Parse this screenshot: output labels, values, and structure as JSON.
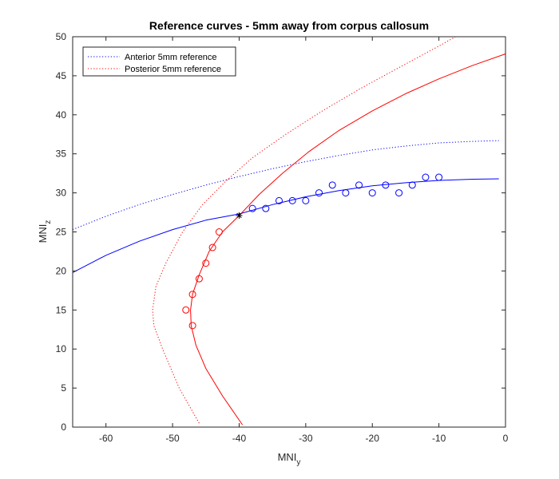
{
  "chart_data": {
    "type": "line",
    "title": "Reference curves - 5mm away from corpus callosum",
    "xlabel": "MNI",
    "xlabel_sub": "y",
    "ylabel": "MNI",
    "ylabel_sub": "z",
    "xlim": [
      -65,
      0
    ],
    "ylim": [
      0,
      50
    ],
    "xticks": [
      -60,
      -50,
      -40,
      -30,
      -20,
      -10,
      0
    ],
    "yticks": [
      0,
      5,
      10,
      15,
      20,
      25,
      30,
      35,
      40,
      45,
      50
    ],
    "grid": false,
    "legend_position": "top-left",
    "legend": [
      {
        "label": "Anterior 5mm reference",
        "color": "#0000ff",
        "style": "dotted"
      },
      {
        "label": "Posterior 5mm reference",
        "color": "#ff0000",
        "style": "dotted"
      }
    ],
    "series": [
      {
        "style": "dotted",
        "color": "#0000ff",
        "x": [
          -65,
          -60,
          -55,
          -50,
          -45,
          -40,
          -35,
          -30,
          -25,
          -20,
          -15,
          -10,
          -5,
          -1
        ],
        "y": [
          25.3,
          27.0,
          28.5,
          29.8,
          31.0,
          32.1,
          33.1,
          34.0,
          34.8,
          35.5,
          36.0,
          36.4,
          36.6,
          36.7
        ]
      },
      {
        "style": "dotted",
        "color": "#ff0000",
        "x": [
          -46.0,
          -49.0,
          -51.5,
          -52.8,
          -53.0,
          -52.5,
          -51.0,
          -48.5,
          -45.5,
          -42.0,
          -38.0,
          -33.0,
          -27.5,
          -21.5,
          -15.0,
          -10.0,
          -7.5
        ],
        "y": [
          0.5,
          5.0,
          10.0,
          13.0,
          15.0,
          18.0,
          21.0,
          25.0,
          28.5,
          31.5,
          34.5,
          37.5,
          40.5,
          43.5,
          46.5,
          48.8,
          50.0
        ]
      },
      {
        "style": "solid",
        "color": "#0000ff",
        "x": [
          -65,
          -60,
          -55,
          -50,
          -45,
          -40,
          -35,
          -30,
          -25,
          -20,
          -15,
          -10,
          -5,
          -1
        ],
        "y": [
          19.8,
          22.0,
          23.8,
          25.3,
          26.5,
          27.3,
          28.5,
          29.5,
          30.3,
          30.9,
          31.3,
          31.6,
          31.75,
          31.8
        ]
      },
      {
        "style": "solid",
        "color": "#ff0000",
        "x": [
          -39.5,
          -42.5,
          -45.0,
          -46.5,
          -47.2,
          -47.3,
          -47.0,
          -46.0,
          -44.5,
          -42.5,
          -40.0,
          -37.0,
          -33.5,
          -29.5,
          -25.0,
          -20.0,
          -15.0,
          -10.0,
          -5.0,
          0.0
        ],
        "y": [
          0.3,
          4.0,
          7.5,
          10.5,
          13.0,
          15.0,
          17.0,
          19.5,
          22.5,
          25.0,
          27.1,
          29.8,
          32.5,
          35.3,
          38.0,
          40.5,
          42.7,
          44.6,
          46.3,
          47.8
        ]
      },
      {
        "style": "circles",
        "color": "#0000ff",
        "x": [
          -38,
          -36,
          -34,
          -32,
          -30,
          -28,
          -26,
          -24,
          -22,
          -20,
          -18,
          -16,
          -14,
          -12,
          -10
        ],
        "y": [
          28,
          28,
          29,
          29,
          29,
          30,
          31,
          30,
          31,
          30,
          31,
          30,
          31,
          32,
          32
        ]
      },
      {
        "style": "circles",
        "color": "#ff0000",
        "x": [
          -48,
          -47,
          -47,
          -46,
          -45,
          -44,
          -43
        ],
        "y": [
          15,
          13,
          17,
          19,
          21,
          23,
          25
        ]
      },
      {
        "style": "star",
        "color": "#000000",
        "x": [
          -40
        ],
        "y": [
          27.1
        ]
      }
    ]
  }
}
